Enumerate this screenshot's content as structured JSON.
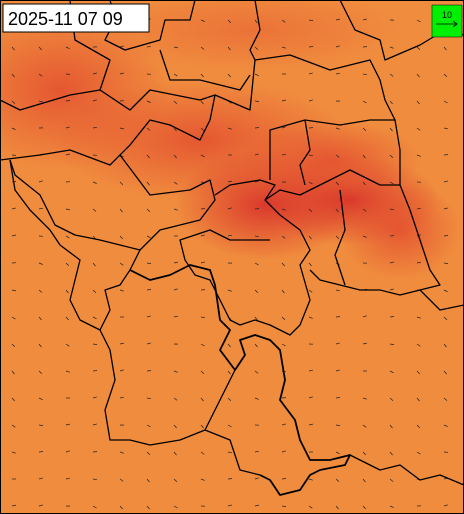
{
  "timestamp": "2025-11 07 09",
  "legend": {
    "label": "10"
  }
}
